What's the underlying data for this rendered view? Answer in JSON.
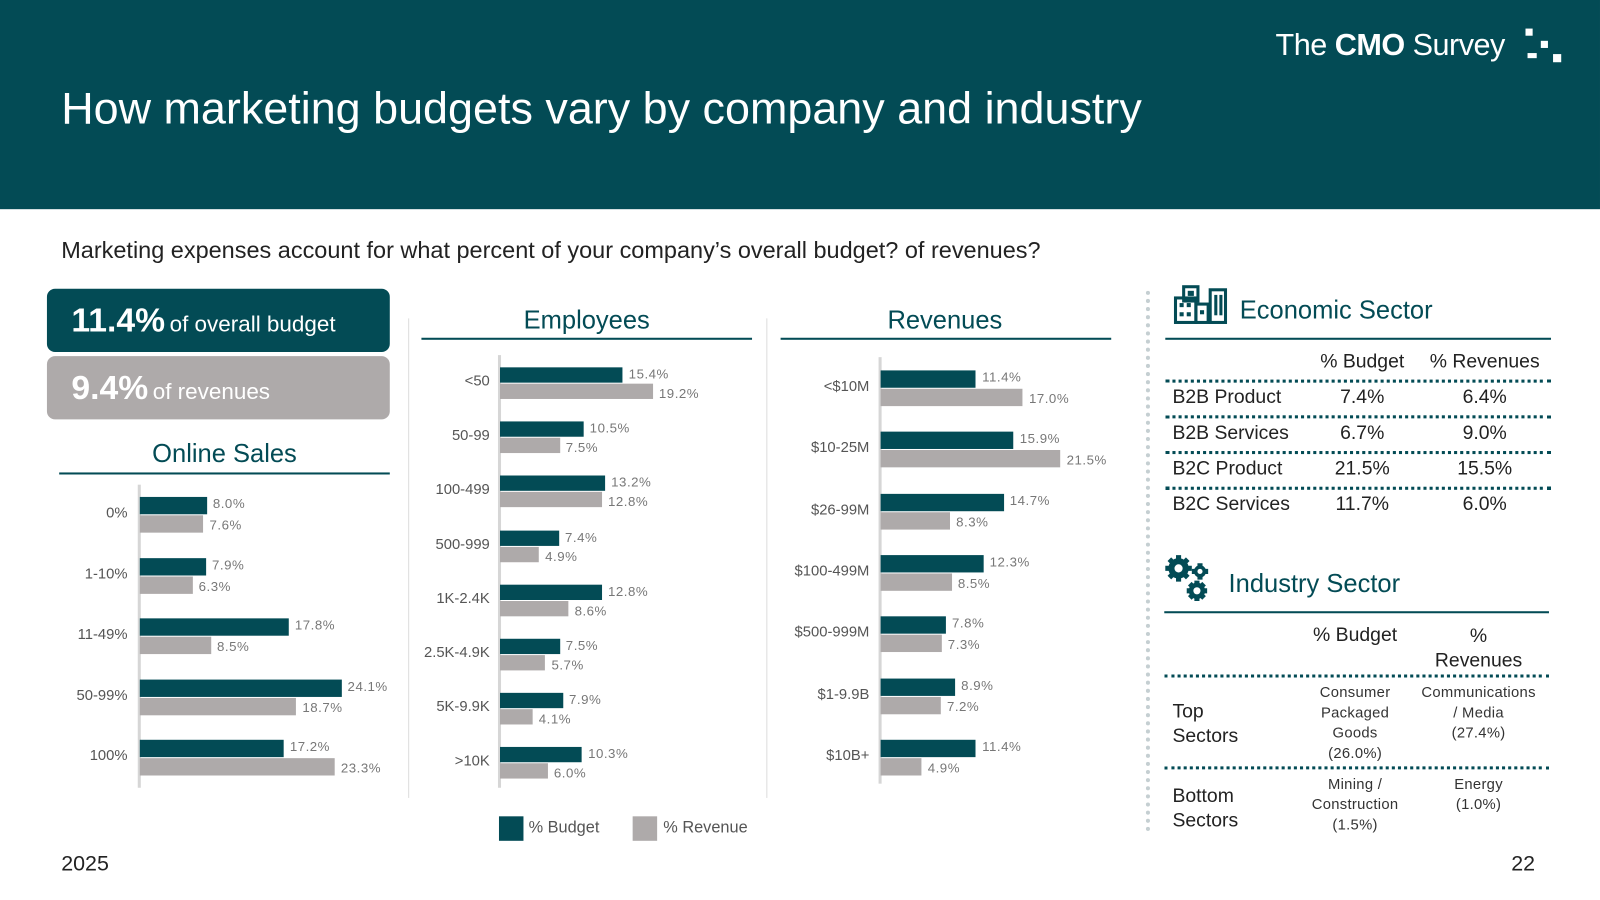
{
  "header": {
    "title": "How marketing budgets vary by company and industry",
    "logo_the": "The",
    "logo_cmo": "CMO",
    "logo_survey": "Survey"
  },
  "question": "Marketing expenses account for what percent of your company’s overall budget? of revenues?",
  "kpis": [
    {
      "value": "11.4%",
      "label": "of overall budget"
    },
    {
      "value": "9.4%",
      "label": "of revenues"
    }
  ],
  "colors": {
    "budget": "#034b55",
    "revenue": "#aeaaaa"
  },
  "chart_data": [
    {
      "type": "bar",
      "title": "Online Sales",
      "categories": [
        "0%",
        "1-10%",
        "11-49%",
        "50-99%",
        "100%"
      ],
      "series": [
        {
          "name": "% Budget",
          "values": [
            8.0,
            7.9,
            17.8,
            24.1,
            17.2
          ]
        },
        {
          "name": "% Revenue",
          "values": [
            7.6,
            6.3,
            8.5,
            18.7,
            23.3
          ]
        }
      ]
    },
    {
      "type": "bar",
      "title": "Employees",
      "categories": [
        "<50",
        "50-99",
        "100-499",
        "500-999",
        "1K-2.4K",
        "2.5K-4.9K",
        "5K-9.9K",
        ">10K"
      ],
      "series": [
        {
          "name": "% Budget",
          "values": [
            15.4,
            10.5,
            13.2,
            7.4,
            12.8,
            7.5,
            7.9,
            10.3
          ]
        },
        {
          "name": "% Revenue",
          "values": [
            19.2,
            7.5,
            12.8,
            4.9,
            8.6,
            5.7,
            4.1,
            6.0
          ]
        }
      ]
    },
    {
      "type": "bar",
      "title": "Revenues",
      "categories": [
        "<$10M",
        "$10-25M",
        "$26-99M",
        "$100-499M",
        "$500-999M",
        "$1-9.9B",
        "$10B+"
      ],
      "series": [
        {
          "name": "% Budget",
          "values": [
            11.4,
            15.9,
            14.7,
            12.3,
            7.8,
            8.9,
            11.4
          ]
        },
        {
          "name": "% Revenue",
          "values": [
            17.0,
            21.5,
            8.3,
            8.5,
            7.3,
            7.2,
            4.9
          ]
        }
      ]
    }
  ],
  "legend": {
    "budget": "% Budget",
    "revenue": "% Revenue"
  },
  "economic": {
    "title": "Economic Sector",
    "col_budget": "% Budget",
    "col_revenues": "% Revenues",
    "rows": [
      {
        "label": "B2B Product",
        "budget": "7.4%",
        "revenues": "6.4%"
      },
      {
        "label": "B2B Services",
        "budget": "6.7%",
        "revenues": "9.0%"
      },
      {
        "label": "B2C Product",
        "budget": "21.5%",
        "revenues": "15.5%"
      },
      {
        "label": "B2C Services",
        "budget": "11.7%",
        "revenues": "6.0%"
      }
    ]
  },
  "industry": {
    "title": "Industry Sector",
    "col_budget": "% Budget",
    "col_revenues_1": "%",
    "col_revenues_2": "Revenues",
    "top": {
      "label_1": "Top",
      "label_2": "Sectors",
      "budget": [
        "Consumer",
        "Packaged",
        "Goods",
        "(26.0%)"
      ],
      "revenues": [
        "Communications",
        "/ Media",
        "(27.4%)"
      ]
    },
    "bottom": {
      "label_1": "Bottom",
      "label_2": "Sectors",
      "budget": [
        "Mining /",
        "Construction",
        "(1.5%)"
      ],
      "revenues": [
        "Energy",
        "(1.0%)"
      ]
    }
  },
  "footer": {
    "year": "2025",
    "page": "22"
  }
}
